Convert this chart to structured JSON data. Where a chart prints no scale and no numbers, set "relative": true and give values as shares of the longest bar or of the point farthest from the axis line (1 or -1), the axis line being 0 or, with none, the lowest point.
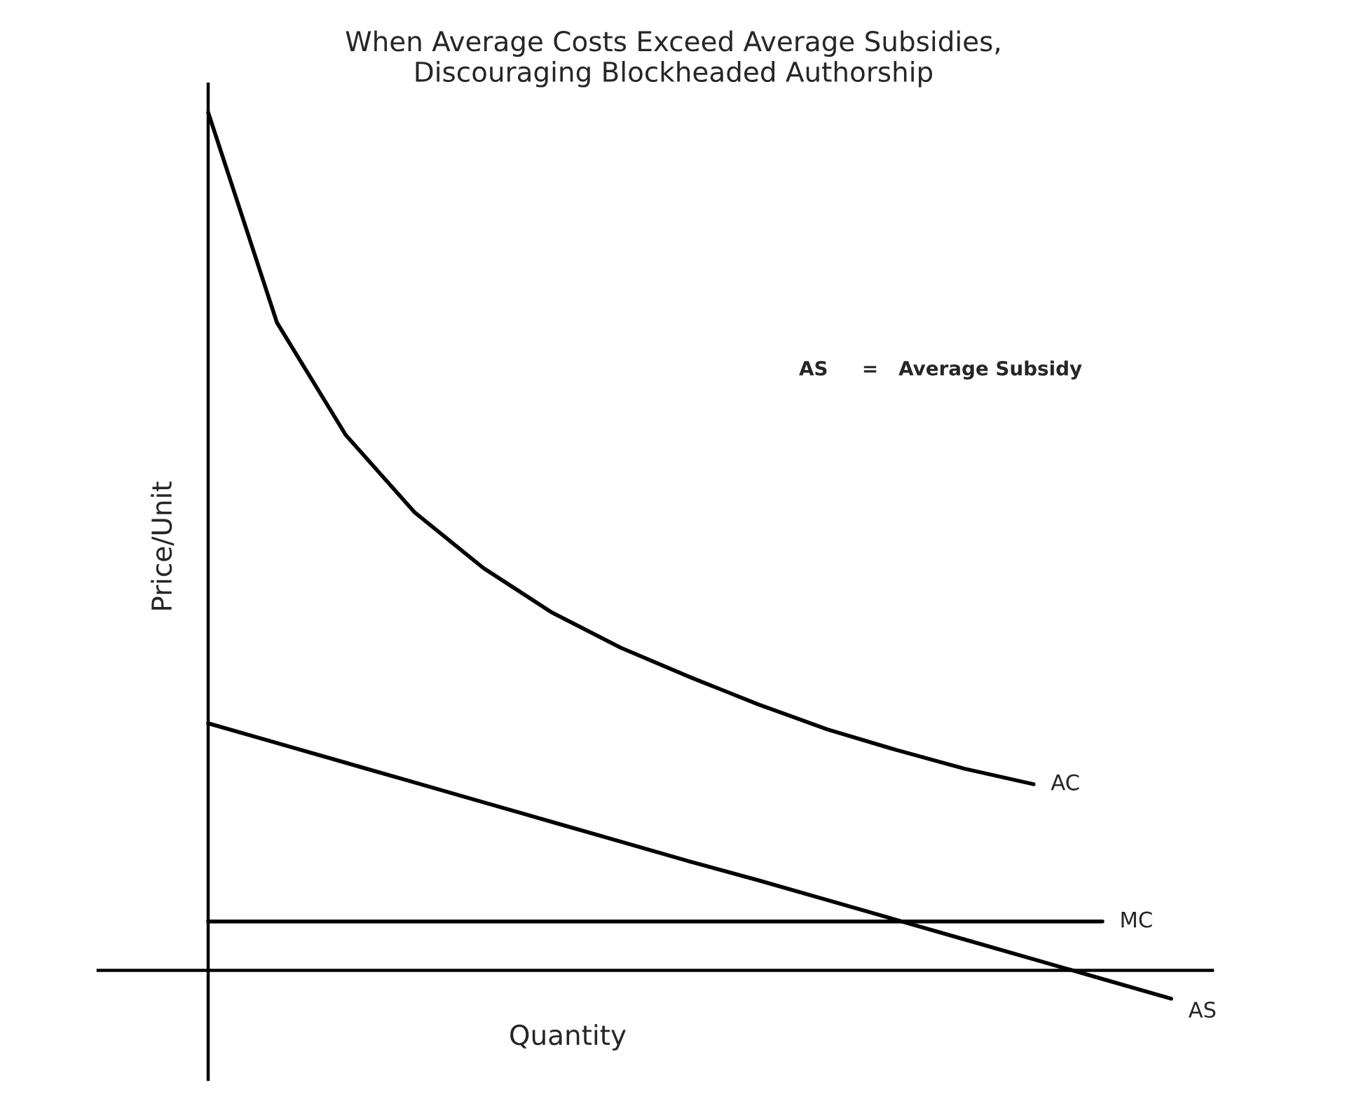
{
  "chart_data": {
    "type": "line",
    "relative": true,
    "title": "When Average Costs Exceed Average Subsidies,\nDiscouraging Blockheaded Authorship",
    "xlabel": "Quantity",
    "ylabel": "Price/Unit",
    "categories": [
      null,
      null,
      null,
      null,
      null,
      null,
      null,
      null,
      null,
      null,
      null,
      null,
      null,
      null,
      null
    ],
    "series": [
      {
        "name": "AC",
        "color": "#000000",
        "values": [
          1.0,
          0.755,
          0.624,
          0.534,
          0.469,
          0.417,
          0.376,
          0.342,
          0.31,
          0.281,
          0.257,
          0.235,
          0.217,
          null,
          null
        ]
      },
      {
        "name": "MC",
        "color": "#000000",
        "values": [
          0.057,
          0.057,
          0.057,
          0.057,
          0.057,
          0.057,
          0.057,
          0.057,
          0.057,
          0.057,
          0.057,
          0.057,
          0.057,
          0.057,
          null
        ]
      },
      {
        "name": "AS",
        "color": "#000000",
        "values": [
          0.288,
          0.265,
          0.242,
          0.219,
          0.196,
          0.173,
          0.15,
          0.127,
          0.105,
          0.082,
          0.059,
          0.036,
          0.013,
          -0.01,
          -0.033
        ]
      }
    ],
    "annotations": [
      "AS     =   Average Subsidy"
    ],
    "legend": false,
    "marker": "none",
    "line_style": "solid"
  }
}
